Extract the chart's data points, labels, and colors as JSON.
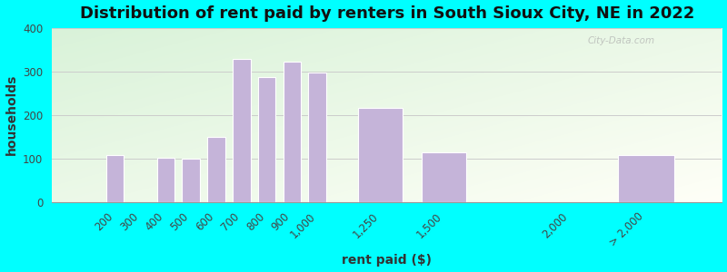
{
  "title": "Distribution of rent paid by renters in South Sioux City, NE in 2022",
  "xlabel": "rent paid ($)",
  "ylabel": "households",
  "bar_color": "#c5b4d9",
  "bar_edge_color": "#ffffff",
  "categories": [
    "200",
    "300",
    "400",
    "500",
    "600",
    "700",
    "800",
    "900",
    "1,000",
    "1,250",
    "1,500",
    "2,000",
    "> 2,000"
  ],
  "x_values": [
    200,
    300,
    400,
    500,
    600,
    700,
    800,
    900,
    1000,
    1250,
    1500,
    2000,
    2300
  ],
  "values": [
    107,
    0,
    102,
    100,
    150,
    328,
    287,
    323,
    298,
    216,
    114,
    0,
    107
  ],
  "bar_widths": [
    80,
    0,
    80,
    80,
    80,
    80,
    80,
    80,
    80,
    200,
    200,
    0,
    250
  ],
  "ylim": [
    0,
    400
  ],
  "yticks": [
    0,
    100,
    200,
    300,
    400
  ],
  "outer_bg": "#00ffff",
  "title_fontsize": 13,
  "axis_label_fontsize": 10,
  "tick_fontsize": 8.5,
  "watermark_text": "City-Data.com"
}
